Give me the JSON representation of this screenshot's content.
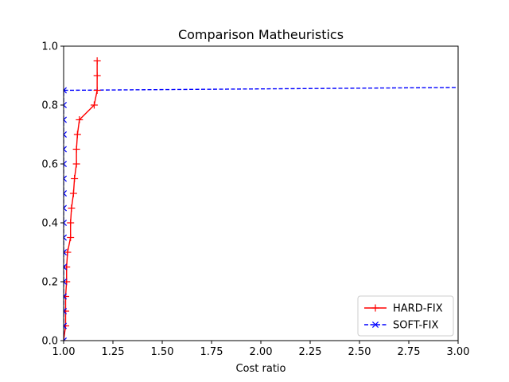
{
  "chart_data": {
    "type": "line",
    "title": "Comparison Matheuristics",
    "xlabel": "Cost ratio",
    "ylabel": "",
    "xlim": [
      1.0,
      3.0
    ],
    "ylim": [
      0.0,
      1.0
    ],
    "xticks": [
      "1.00",
      "1.25",
      "1.50",
      "1.75",
      "2.00",
      "2.25",
      "2.50",
      "2.75",
      "3.00"
    ],
    "yticks": [
      "0.0",
      "0.2",
      "0.4",
      "0.6",
      "0.8",
      "1.0"
    ],
    "grid": false,
    "legend_position": "lower-right",
    "series": [
      {
        "name": "HARD-FIX",
        "color": "#ff0000",
        "line_style": "solid",
        "marker": "plus",
        "points": [
          [
            1.0,
            0.0
          ],
          [
            1.01,
            0.05
          ],
          [
            1.01,
            0.1
          ],
          [
            1.01,
            0.15
          ],
          [
            1.015,
            0.2
          ],
          [
            1.015,
            0.25
          ],
          [
            1.02,
            0.3
          ],
          [
            1.035,
            0.35
          ],
          [
            1.035,
            0.4
          ],
          [
            1.04,
            0.45
          ],
          [
            1.05,
            0.5
          ],
          [
            1.055,
            0.55
          ],
          [
            1.065,
            0.6
          ],
          [
            1.065,
            0.65
          ],
          [
            1.07,
            0.7
          ],
          [
            1.08,
            0.75
          ],
          [
            1.155,
            0.8
          ],
          [
            1.17,
            0.85
          ],
          [
            1.17,
            0.9
          ],
          [
            1.17,
            0.95
          ]
        ]
      },
      {
        "name": "SOFT-FIX",
        "color": "#0000ff",
        "line_style": "dashed",
        "marker": "x",
        "points": [
          [
            1.0,
            0.0
          ],
          [
            1.0,
            0.05
          ],
          [
            1.0,
            0.1
          ],
          [
            1.0,
            0.15
          ],
          [
            1.0,
            0.2
          ],
          [
            1.0,
            0.25
          ],
          [
            1.0,
            0.3
          ],
          [
            1.0,
            0.35
          ],
          [
            1.0,
            0.4
          ],
          [
            1.0,
            0.45
          ],
          [
            1.0,
            0.5
          ],
          [
            1.0,
            0.55
          ],
          [
            1.0,
            0.6
          ],
          [
            1.0,
            0.65
          ],
          [
            1.0,
            0.7
          ],
          [
            1.0,
            0.75
          ],
          [
            1.0,
            0.8
          ],
          [
            1.0,
            0.85
          ],
          [
            3.05,
            0.86
          ]
        ]
      }
    ]
  }
}
